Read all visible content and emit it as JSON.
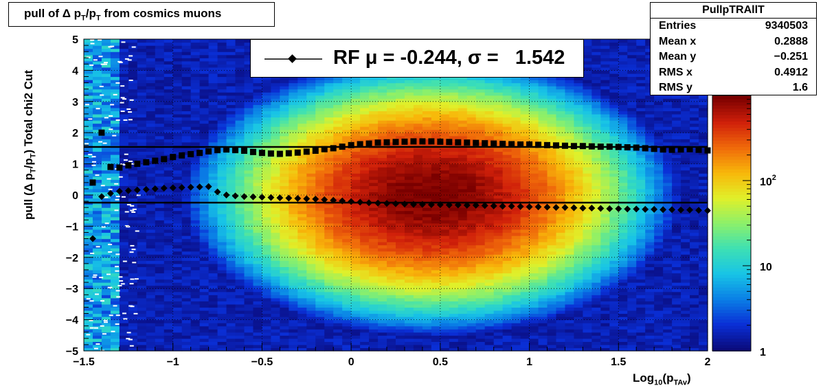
{
  "title": {
    "prefix": "pull of ",
    "delta": "Δ",
    "p1": " p",
    "sub1": "T",
    "slash": "/p",
    "sub2": "T",
    "suffix": " from cosmics muons"
  },
  "stats_box": {
    "name": "PullpTRAllT",
    "rows": [
      {
        "label": "Entries",
        "value": "9340503"
      },
      {
        "label": "Mean x",
        "value": "0.2888"
      },
      {
        "label": "Mean y",
        "value": "−0.251"
      },
      {
        "label": "RMS x",
        "value": "0.4912"
      },
      {
        "label": "RMS y",
        "value": "1.6"
      }
    ]
  },
  "legend": {
    "text": "RF μ = -0.244, σ =   1.542"
  },
  "colors": {
    "marker": "#000000",
    "palette": [
      "#0a0a7a",
      "#0a2fd6",
      "#0a7fe6",
      "#18c4e6",
      "#3de0b4",
      "#8cf06a",
      "#e0f02a",
      "#f8b80a",
      "#f06a0a",
      "#d0200a",
      "#7a0000"
    ]
  },
  "chart_data": {
    "type": "heatmap",
    "title": "pull of Δ p_T/p_T from cosmics muons",
    "xlabel": "Log10(pTAv)",
    "ylabel": "pull (Δ pT/pT)  Total chi2 Cut",
    "xlim": [
      -1.5,
      2
    ],
    "ylim": [
      -5,
      5
    ],
    "z_scale": "log",
    "zlim": [
      1,
      1000
    ],
    "x_ticks": [
      "−1.5",
      "−1",
      "−0.5",
      "0",
      "0.5",
      "1",
      "1.5",
      "2"
    ],
    "x_tick_values": [
      -1.5,
      -1,
      -0.5,
      0,
      0.5,
      1,
      1.5,
      2
    ],
    "y_ticks": [
      "−5",
      "−4",
      "−3",
      "−2",
      "−1",
      "0",
      "1",
      "2",
      "3",
      "4",
      "5"
    ],
    "y_tick_values": [
      -5,
      -4,
      -3,
      -2,
      -1,
      0,
      1,
      2,
      3,
      4,
      5
    ],
    "z_ticks": [
      "1",
      "10",
      "10^2"
    ],
    "z_tick_values": [
      1,
      10,
      100
    ],
    "peak_x": 0.45,
    "peak_y": 0,
    "grid": true,
    "mean_line": -0.244,
    "sigma_line": 1.542,
    "sigma_series": {
      "x": [
        -1.45,
        -1.4,
        -1.35,
        -1.3,
        -1.25,
        -1.2,
        -1.15,
        -1.1,
        -1.05,
        -1.0,
        -0.95,
        -0.9,
        -0.85,
        -0.8,
        -0.75,
        -0.7,
        -0.65,
        -0.6,
        -0.55,
        -0.5,
        -0.45,
        -0.4,
        -0.35,
        -0.3,
        -0.25,
        -0.2,
        -0.15,
        -0.1,
        -0.05,
        0.0,
        0.05,
        0.1,
        0.15,
        0.2,
        0.25,
        0.3,
        0.35,
        0.4,
        0.45,
        0.5,
        0.55,
        0.6,
        0.65,
        0.7,
        0.75,
        0.8,
        0.85,
        0.9,
        0.95,
        1.0,
        1.05,
        1.1,
        1.15,
        1.2,
        1.25,
        1.3,
        1.35,
        1.4,
        1.45,
        1.5,
        1.55,
        1.6,
        1.65,
        1.7,
        1.75,
        1.8,
        1.85,
        1.9,
        1.95,
        2.0
      ],
      "y": [
        0.4,
        2.0,
        0.9,
        0.88,
        0.95,
        1.0,
        1.05,
        1.1,
        1.15,
        1.22,
        1.27,
        1.31,
        1.35,
        1.4,
        1.44,
        1.46,
        1.44,
        1.42,
        1.38,
        1.35,
        1.33,
        1.32,
        1.34,
        1.36,
        1.39,
        1.42,
        1.47,
        1.5,
        1.55,
        1.6,
        1.63,
        1.65,
        1.68,
        1.69,
        1.7,
        1.71,
        1.72,
        1.72,
        1.72,
        1.71,
        1.7,
        1.69,
        1.68,
        1.67,
        1.66,
        1.65,
        1.64,
        1.63,
        1.62,
        1.62,
        1.61,
        1.6,
        1.59,
        1.58,
        1.57,
        1.57,
        1.56,
        1.55,
        1.55,
        1.54,
        1.53,
        1.52,
        1.5,
        1.48,
        1.46,
        1.45,
        1.46,
        1.47,
        1.45,
        1.43
      ]
    },
    "mean_series": {
      "x": [
        -1.45,
        -1.4,
        -1.35,
        -1.3,
        -1.25,
        -1.2,
        -1.15,
        -1.1,
        -1.05,
        -1.0,
        -0.95,
        -0.9,
        -0.85,
        -0.8,
        -0.75,
        -0.7,
        -0.65,
        -0.6,
        -0.55,
        -0.5,
        -0.45,
        -0.4,
        -0.35,
        -0.3,
        -0.25,
        -0.2,
        -0.15,
        -0.1,
        -0.05,
        0.0,
        0.05,
        0.1,
        0.15,
        0.2,
        0.25,
        0.3,
        0.35,
        0.4,
        0.45,
        0.5,
        0.55,
        0.6,
        0.65,
        0.7,
        0.75,
        0.8,
        0.85,
        0.9,
        0.95,
        1.0,
        1.05,
        1.1,
        1.15,
        1.2,
        1.25,
        1.3,
        1.35,
        1.4,
        1.45,
        1.5,
        1.55,
        1.6,
        1.65,
        1.7,
        1.75,
        1.8,
        1.85,
        1.9,
        1.95,
        2.0
      ],
      "y": [
        -1.4,
        -0.05,
        0.05,
        0.12,
        0.14,
        0.16,
        0.18,
        0.2,
        0.22,
        0.23,
        0.24,
        0.25,
        0.26,
        0.27,
        0.1,
        0.0,
        -0.03,
        -0.05,
        -0.06,
        -0.07,
        -0.08,
        -0.09,
        -0.1,
        -0.11,
        -0.12,
        -0.13,
        -0.15,
        -0.17,
        -0.19,
        -0.21,
        -0.23,
        -0.25,
        -0.26,
        -0.27,
        -0.28,
        -0.29,
        -0.3,
        -0.3,
        -0.31,
        -0.31,
        -0.32,
        -0.32,
        -0.33,
        -0.33,
        -0.34,
        -0.35,
        -0.36,
        -0.36,
        -0.37,
        -0.38,
        -0.38,
        -0.39,
        -0.4,
        -0.4,
        -0.41,
        -0.42,
        -0.42,
        -0.43,
        -0.44,
        -0.44,
        -0.45,
        -0.45,
        -0.46,
        -0.46,
        -0.47,
        -0.47,
        -0.48,
        -0.48,
        -0.49,
        -0.5
      ]
    }
  },
  "axes": {
    "x_title_main": "Log",
    "x_title_sub1": "10",
    "x_title_paren": "(p",
    "x_title_sub2": "TAv",
    "x_title_close": ")",
    "y_title_a": "pull (",
    "y_title_delta": "Δ",
    "y_title_b": " p",
    "y_title_sub1": "T",
    "y_title_c": "/p",
    "y_title_sub2": "T",
    "y_title_d": ")  Total chi2 Cut"
  }
}
